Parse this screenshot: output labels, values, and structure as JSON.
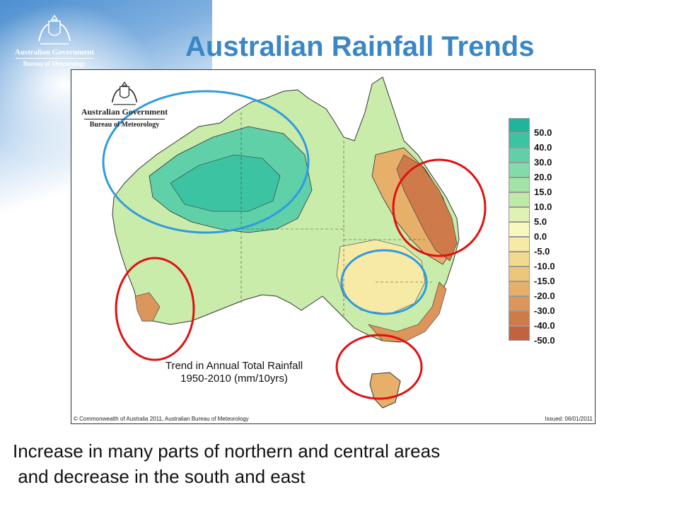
{
  "slide_title": "Australian Rainfall Trends",
  "logo": {
    "government": "Australian Government",
    "bureau": "Bureau of Meteorology"
  },
  "map": {
    "caption_line1": "Trend in Annual Total Rainfall",
    "caption_line2": "1950-2010 (mm/10yrs)",
    "credit": "© Commonwealth of Australia 2011, Australian Bureau of Meteorology",
    "issued": "Issued: 06/01/2011",
    "legend": [
      {
        "label": "50.0",
        "color": "#22b49b"
      },
      {
        "label": "40.0",
        "color": "#3cc3a2"
      },
      {
        "label": "30.0",
        "color": "#5fd0a8"
      },
      {
        "label": "20.0",
        "color": "#82dba8"
      },
      {
        "label": "15.0",
        "color": "#a3e3a6"
      },
      {
        "label": "10.0",
        "color": "#c0eaa8"
      },
      {
        "label": "5.0",
        "color": "#dff2b3"
      },
      {
        "label": "0.0",
        "color": "#f7f7c0"
      },
      {
        "label": "-5.0",
        "color": "#f6eaa6"
      },
      {
        "label": "-10.0",
        "color": "#f2d990"
      },
      {
        "label": "-15.0",
        "color": "#ecc67b"
      },
      {
        "label": "-20.0",
        "color": "#e6b06a"
      },
      {
        "label": "-30.0",
        "color": "#dc955a"
      },
      {
        "label": "-40.0",
        "color": "#cf7a4b"
      },
      {
        "label": "-50.0",
        "color": "#c2623e"
      }
    ],
    "highlight_colors": {
      "increase": "#2f9be0",
      "decrease": "#e01010"
    }
  },
  "bottom_text": {
    "line1": "Increase in many parts of northern and central areas",
    "line2": " and decrease in the south and east"
  }
}
